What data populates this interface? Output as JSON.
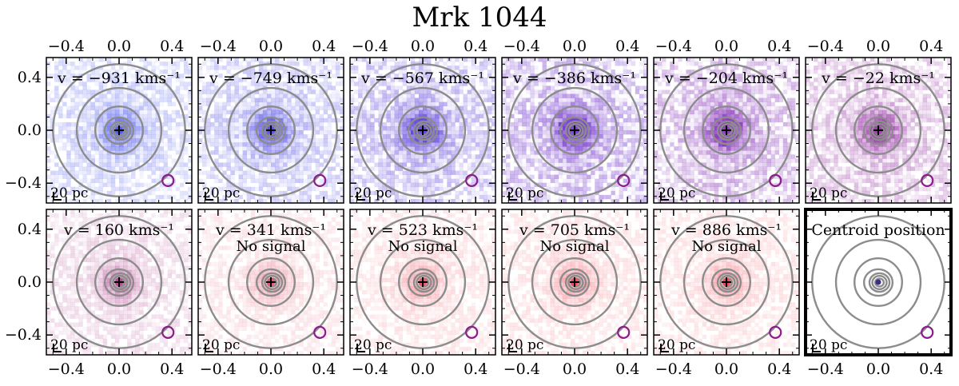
{
  "chart_data": {
    "type": "heatmap",
    "title": "Mrk 1044",
    "layout": "2 rows x 6 columns of velocity-channel maps",
    "axis_range": [
      -0.55,
      0.55
    ],
    "ticks": [
      -0.4,
      0.0,
      0.4
    ],
    "tick_labels": [
      "−0.4",
      "0.0",
      "0.4"
    ],
    "scale_bar_label": "20 pc",
    "contour_color": "#8c8c8c",
    "beam_color": "#8b1c8b",
    "panels": [
      {
        "label": "v = −931 kms⁻¹",
        "velocity": -931,
        "color": "#4a55ee",
        "intensity": 0.55,
        "note": ""
      },
      {
        "label": "v = −749 kms⁻¹",
        "velocity": -749,
        "color": "#5550e6",
        "intensity": 0.65,
        "note": ""
      },
      {
        "label": "v = −567 kms⁻¹",
        "velocity": -567,
        "color": "#6548dc",
        "intensity": 0.8,
        "note": ""
      },
      {
        "label": "v = −386 kms⁻¹",
        "velocity": -386,
        "color": "#7a40d0",
        "intensity": 0.9,
        "note": ""
      },
      {
        "label": "v = −204 kms⁻¹",
        "velocity": -204,
        "color": "#8c3cbc",
        "intensity": 0.85,
        "note": ""
      },
      {
        "label": "v = −22 kms⁻¹",
        "velocity": -22,
        "color": "#9a3aa8",
        "intensity": 0.7,
        "note": ""
      },
      {
        "label": "v = 160 kms⁻¹",
        "velocity": 160,
        "color": "#b0408e",
        "intensity": 0.4,
        "note": ""
      },
      {
        "label": "v = 341 kms⁻¹",
        "velocity": 341,
        "color": "#e0506a",
        "intensity": 0.3,
        "note": "No signal"
      },
      {
        "label": "v = 523 kms⁻¹",
        "velocity": 523,
        "color": "#ec5060",
        "intensity": 0.32,
        "note": "No signal"
      },
      {
        "label": "v = 705 kms⁻¹",
        "velocity": 705,
        "color": "#f04858",
        "intensity": 0.32,
        "note": "No signal"
      },
      {
        "label": "v = 886 kms⁻¹",
        "velocity": 886,
        "color": "#f04050",
        "intensity": 0.3,
        "note": "No signal"
      },
      {
        "label": "Centroid position",
        "velocity": null,
        "color": "#ffffff",
        "intensity": 0,
        "note": "",
        "centroid": true
      }
    ],
    "contour_radii": [
      0.03,
      0.05,
      0.07,
      0.1,
      0.18,
      0.32,
      0.5
    ]
  }
}
